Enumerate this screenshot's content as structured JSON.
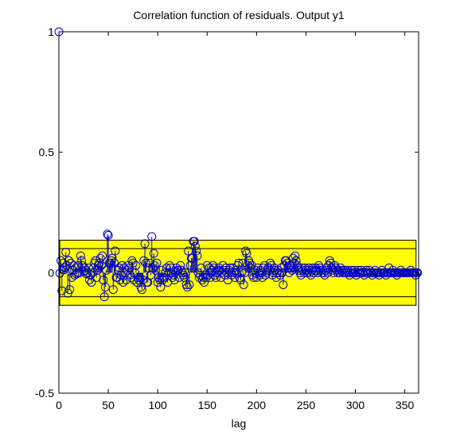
{
  "chart_data": {
    "type": "scatter",
    "title": "Correlation function of residuals. Output y1",
    "xlabel": "lag",
    "ylabel": "",
    "xlim": [
      0,
      364
    ],
    "ylim": [
      -0.5,
      1
    ],
    "xticks": [
      0,
      50,
      100,
      150,
      200,
      250,
      300,
      350
    ],
    "xtick_labels": [
      "0",
      "50",
      "100",
      "150",
      "200",
      "250",
      "300",
      "350"
    ],
    "yticks": [
      -0.5,
      0,
      0.5,
      1
    ],
    "ytick_labels": [
      "-0.5",
      "0",
      "0.5",
      "1"
    ],
    "grid": false,
    "confidence_band": {
      "lower": -0.135,
      "upper": 0.135,
      "color": "#ffff00"
    },
    "reference_lines": [
      0.1,
      -0.1
    ],
    "marker_style": "open-circle-stem",
    "series_color": "#0000cc",
    "series": [
      {
        "x": [
          0,
          1,
          2,
          3,
          4,
          5,
          6,
          7,
          8,
          9,
          10,
          11,
          12,
          13,
          14,
          15,
          16,
          17,
          18,
          19,
          20,
          21,
          22,
          23,
          24,
          25,
          26,
          27,
          28,
          29,
          30,
          31,
          32,
          33,
          34,
          35,
          36,
          37,
          38,
          39,
          40,
          41,
          42,
          43,
          44,
          45,
          46,
          47,
          48,
          49,
          50,
          51,
          52,
          53,
          54,
          55,
          56,
          57,
          58,
          59,
          60,
          61,
          62,
          63,
          64,
          65,
          66,
          67,
          68,
          69,
          70,
          71,
          72,
          73,
          74,
          75,
          76,
          77,
          78,
          79,
          80,
          81,
          82,
          83,
          84,
          85,
          86,
          87,
          88,
          89,
          90,
          91,
          92,
          93,
          94,
          95,
          96,
          97,
          98,
          99,
          100,
          101,
          102,
          103,
          104,
          105,
          106,
          107,
          108,
          109,
          110,
          111,
          112,
          113,
          114,
          115,
          116,
          117,
          118,
          119,
          120,
          121,
          122,
          123,
          124,
          125,
          126,
          127,
          128,
          129,
          130,
          131,
          132,
          133,
          134,
          135,
          136,
          137,
          138,
          139,
          140,
          141,
          142,
          143,
          144,
          145,
          146,
          147,
          148,
          149,
          150,
          151,
          152,
          153,
          154,
          155,
          156,
          157,
          158,
          159,
          160,
          161,
          162,
          163,
          164,
          165,
          166,
          167,
          168,
          169,
          170,
          171,
          172,
          173,
          174,
          175,
          176,
          177,
          178,
          179,
          180,
          181,
          182,
          183,
          184,
          185,
          186,
          187,
          188,
          189,
          190,
          191,
          192,
          193,
          194,
          195,
          196,
          197,
          198,
          199,
          200,
          201,
          202,
          203,
          204,
          205,
          206,
          207,
          208,
          209,
          210,
          211,
          212,
          213,
          214,
          215,
          216,
          217,
          218,
          219,
          220,
          221,
          222,
          223,
          224,
          225,
          226,
          227,
          228,
          229,
          230,
          231,
          232,
          233,
          234,
          235,
          236,
          237,
          238,
          239,
          240,
          241,
          242,
          243,
          244,
          245,
          246,
          247,
          248,
          249,
          250,
          251,
          252,
          253,
          254,
          255,
          256,
          257,
          258,
          259,
          260,
          261,
          262,
          263,
          264,
          265,
          266,
          267,
          268,
          269,
          270,
          271,
          272,
          273,
          274,
          275,
          276,
          277,
          278,
          279,
          280,
          281,
          282,
          283,
          284,
          285,
          286,
          287,
          288,
          289,
          290,
          291,
          292,
          293,
          294,
          295,
          296,
          297,
          298,
          299,
          300,
          301,
          302,
          303,
          304,
          305,
          306,
          307,
          308,
          309,
          310,
          311,
          312,
          313,
          314,
          315,
          316,
          317,
          318,
          319,
          320,
          321,
          322,
          323,
          324,
          325,
          326,
          327,
          328,
          329,
          330,
          331,
          332,
          333,
          334,
          335,
          336,
          337,
          338,
          339,
          340,
          341,
          342,
          343,
          344,
          345,
          346,
          347,
          348,
          349,
          350,
          351,
          352,
          353,
          354,
          355,
          356,
          357,
          358,
          359,
          360,
          361,
          362,
          363
        ],
        "y": [
          1.0,
          -0.002,
          0.05,
          -0.075,
          0.04,
          0.012,
          0.02,
          0.085,
          0.03,
          -0.085,
          0.05,
          -0.07,
          0.04,
          -0.02,
          0.01,
          0.03,
          -0.01,
          0.02,
          -0.005,
          0.0,
          0.03,
          0.0,
          0.07,
          0.05,
          0.03,
          0.005,
          0.02,
          0.01,
          -0.005,
          0.0,
          0.02,
          -0.03,
          -0.01,
          -0.04,
          0.0,
          0.02,
          0.04,
          0.05,
          -0.02,
          0.01,
          0.03,
          0.04,
          0.06,
          0.03,
          0.07,
          -0.03,
          -0.1,
          -0.06,
          0.01,
          0.16,
          0.155,
          0.04,
          0.04,
          0.05,
          0.06,
          -0.07,
          0.04,
          0.09,
          -0.02,
          -0.02,
          0.01,
          0.02,
          -0.03,
          -0.01,
          0.03,
          -0.04,
          0.02,
          0.0,
          -0.03,
          0.01,
          0.03,
          0.02,
          -0.01,
          -0.02,
          0.05,
          0.04,
          -0.03,
          0.0,
          0.03,
          -0.04,
          -0.02,
          -0.03,
          -0.02,
          -0.06,
          -0.07,
          -0.03,
          0.05,
          0.12,
          0.04,
          -0.04,
          -0.04,
          0.02,
          0.04,
          -0.01,
          0.15,
          0.02,
          0.08,
          0.03,
          0.01,
          0.04,
          -0.04,
          -0.02,
          -0.03,
          -0.06,
          0.01,
          -0.03,
          -0.02,
          -0.02,
          0.0,
          0.02,
          -0.04,
          0.0,
          0.03,
          0.02,
          0.0,
          -0.02,
          -0.01,
          -0.03,
          0.0,
          0.02,
          0.01,
          0.01,
          -0.02,
          0.03,
          0.01,
          0.0,
          -0.01,
          -0.02,
          0.0,
          -0.05,
          -0.06,
          0.09,
          -0.05,
          0.03,
          0.06,
          0.06,
          0.13,
          0.13,
          0.11,
          0.09,
          0.07,
          0.0,
          -0.02,
          -0.01,
          0.02,
          -0.03,
          -0.02,
          -0.04,
          -0.01,
          -0.02,
          0.03,
          -0.01,
          0.02,
          -0.02,
          0.0,
          0.01,
          0.03,
          0.02,
          -0.01,
          -0.02,
          0.0,
          0.01,
          0.02,
          0.01,
          -0.02,
          0.0,
          0.03,
          0.01,
          -0.01,
          0.02,
          0.0,
          -0.03,
          0.01,
          0.02,
          0.0,
          -0.01,
          0.02,
          0.0,
          -0.02,
          0.01,
          0.0,
          0.03,
          0.04,
          -0.02,
          -0.03,
          0.0,
          0.04,
          -0.05,
          0.0,
          0.09,
          0.08,
          0.03,
          0.05,
          0.04,
          0.02,
          0.03,
          -0.01,
          -0.02,
          0.0,
          0.01,
          -0.02,
          0.02,
          0.0,
          -0.01,
          0.01,
          0.0,
          -0.02,
          0.02,
          0.03,
          -0.01,
          0.0,
          0.01,
          0.02,
          0.01,
          0.04,
          0.03,
          -0.01,
          0.0,
          0.02,
          0.01,
          -0.02,
          0.0,
          0.01,
          0.0,
          -0.01,
          0.02,
          0.0,
          -0.05,
          0.03,
          0.05,
          0.05,
          0.04,
          0.02,
          0.0,
          0.03,
          0.02,
          0.01,
          0.06,
          0.04,
          0.07,
          0.05,
          0.03,
          0.02,
          0.01,
          0.0,
          -0.01,
          0.02,
          0.01,
          0.0,
          0.02,
          0.01,
          0.0,
          0.01,
          0.02,
          0.0,
          -0.01,
          0.01,
          0.02,
          0.0,
          0.01,
          0.02,
          0.01,
          0.0,
          0.03,
          0.02,
          0.01,
          0.0,
          0.01,
          0.0,
          -0.01,
          0.01,
          0.02,
          0.0,
          0.03,
          0.05,
          0.04,
          0.02,
          0.01,
          0.0,
          0.03,
          0.02,
          0.01,
          0.0,
          0.01,
          0.0,
          0.02,
          0.01,
          0.0,
          0.01,
          0.0,
          0.01,
          0.0,
          0.01,
          0.0,
          -0.01,
          0.0,
          0.01,
          0.0,
          0.0,
          0.01,
          0.0,
          -0.01,
          0.0,
          0.01,
          0.0,
          0.0,
          0.01,
          0.0,
          0.0,
          -0.01,
          0.0,
          0.01,
          0.0,
          0.0,
          0.01,
          0.0,
          0.0,
          -0.01,
          0.0,
          0.0,
          0.01,
          0.0,
          0.0,
          0.0,
          -0.01,
          0.0,
          0.0,
          0.01,
          0.0,
          0.0,
          0.0,
          -0.01,
          0.0,
          0.0,
          0.02,
          0.0,
          0.0,
          0.0,
          0.01,
          0.0,
          0.0,
          0.0,
          -0.01,
          0.0,
          0.0,
          0.0,
          0.01,
          0.0,
          0.0,
          0.0,
          0.0,
          0.0,
          0.0,
          0.0,
          0.0,
          0.0,
          0.01,
          0.0,
          0.0,
          0.0,
          0.0,
          -0.01,
          0.0,
          0.0
        ]
      }
    ]
  }
}
